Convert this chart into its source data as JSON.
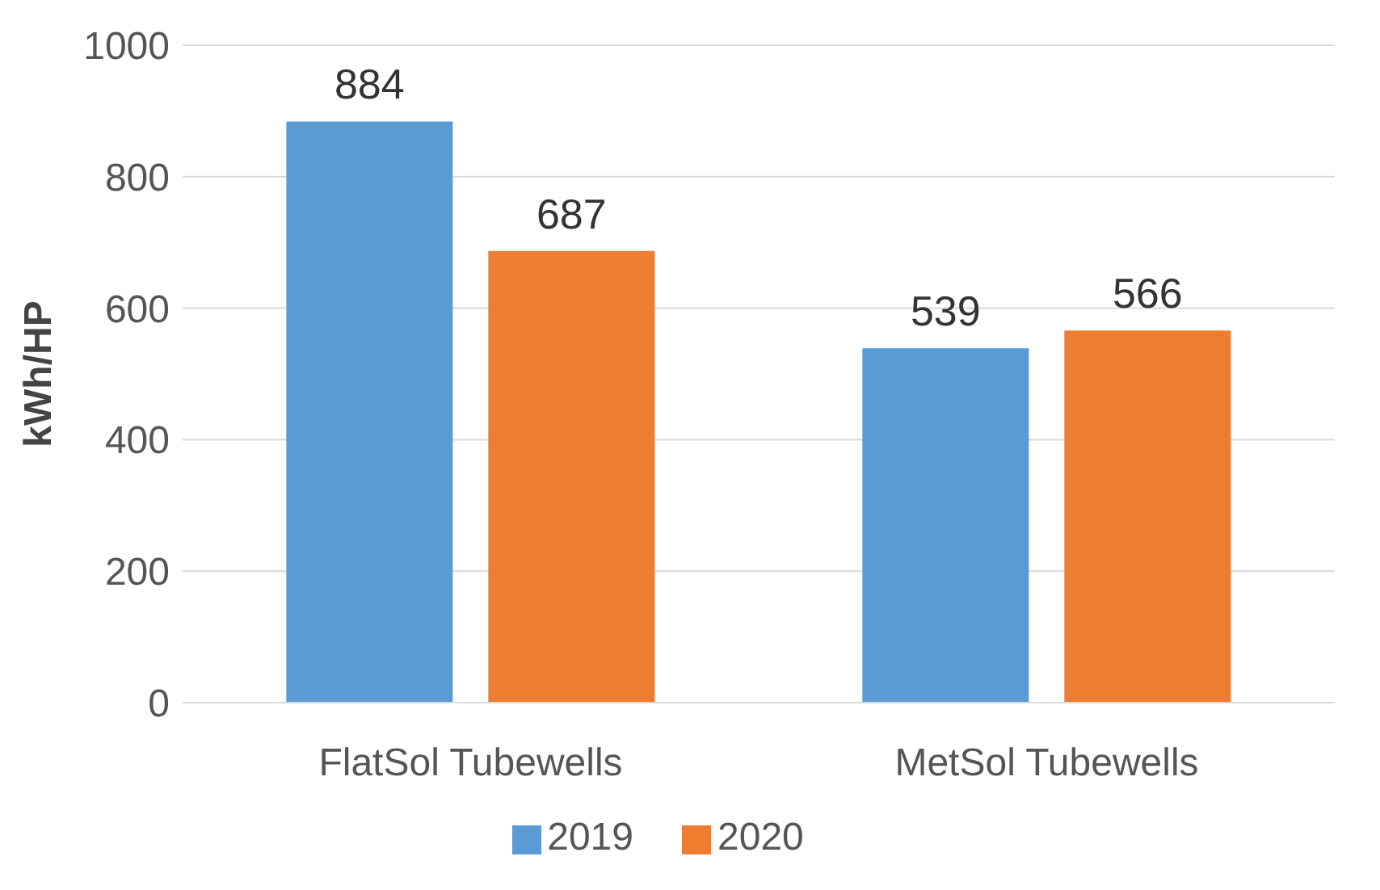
{
  "chart_data": {
    "type": "bar",
    "ylabel": "kWh/HP",
    "categories": [
      "FlatSol Tubewells",
      "MetSol Tubewells"
    ],
    "series": [
      {
        "name": "2019",
        "color": "#5b9bd5",
        "values": [
          884,
          539
        ]
      },
      {
        "name": "2020",
        "color": "#ed7d31",
        "values": [
          687,
          566
        ]
      }
    ],
    "ylim": [
      0,
      1000
    ],
    "yticks": [
      0,
      200,
      400,
      600,
      800,
      1000
    ],
    "grid": "y",
    "legend": "bottom",
    "data_labels": true
  }
}
